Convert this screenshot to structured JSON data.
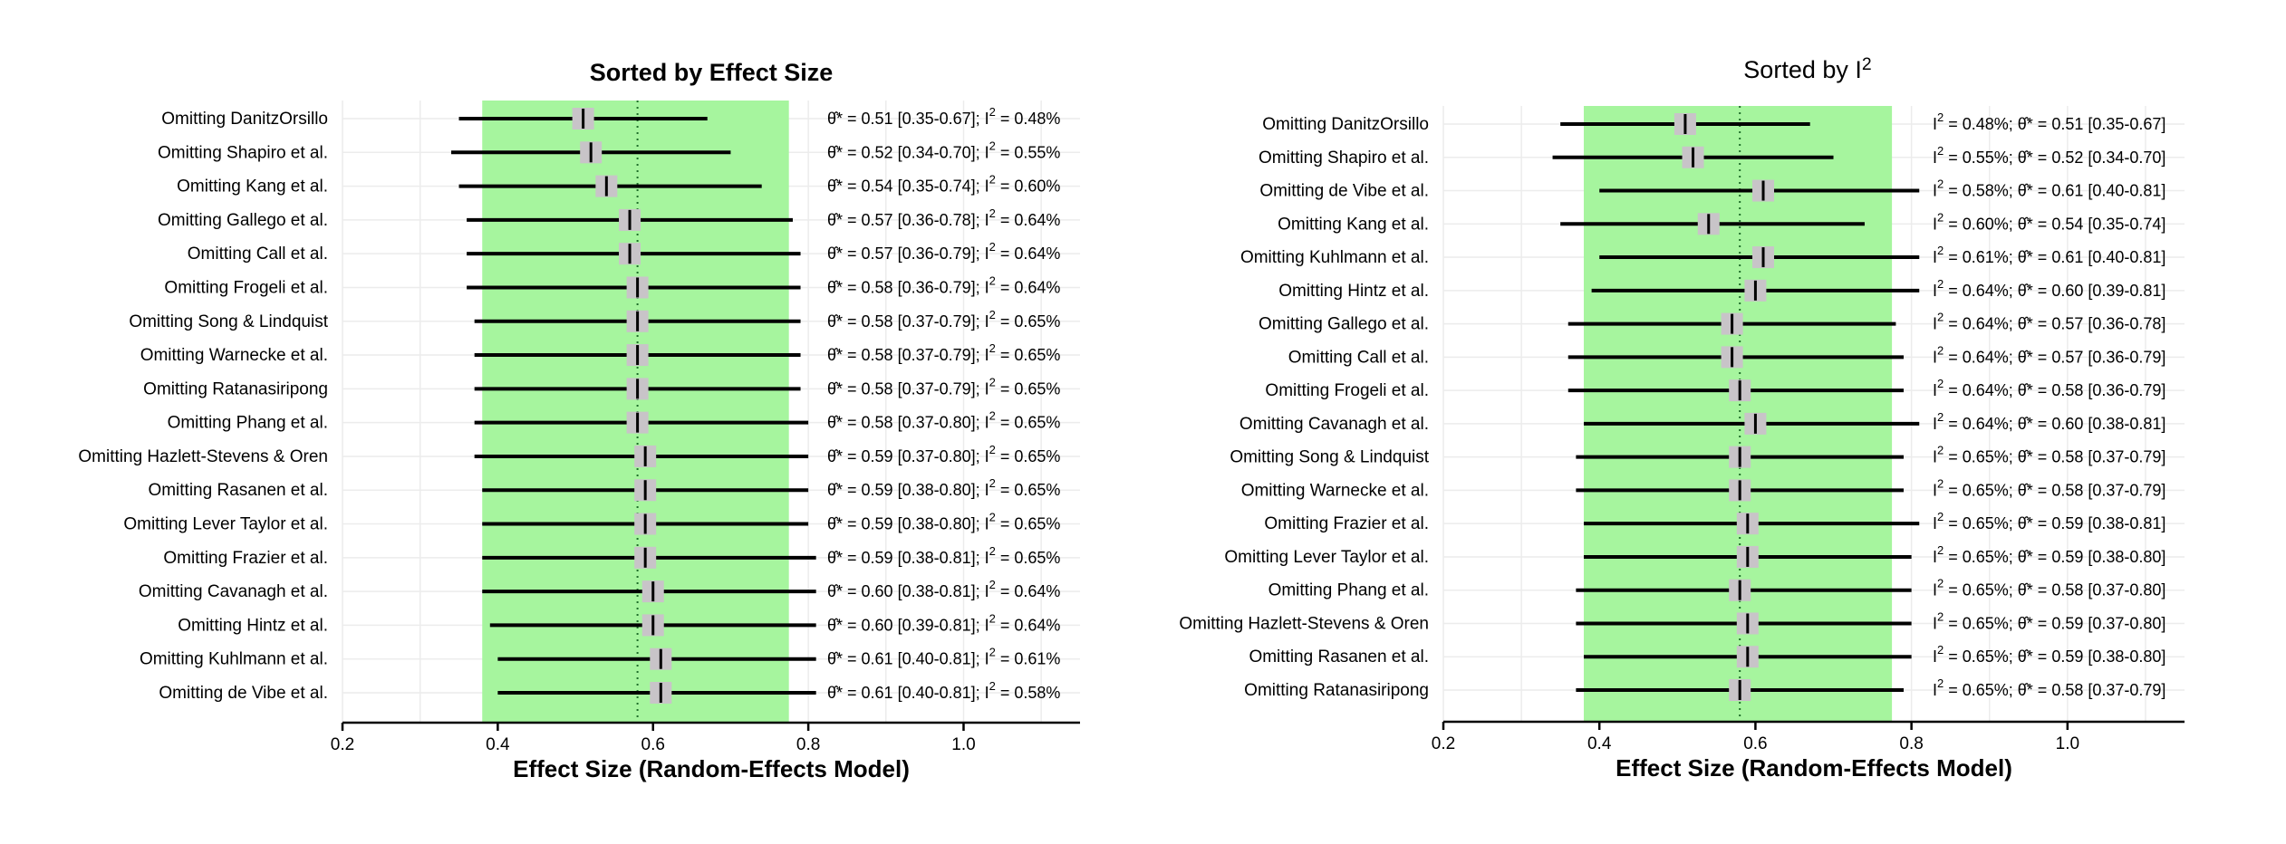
{
  "chart_data": [
    {
      "type": "forest",
      "title": "Sorted by Effect Size",
      "xlabel": "Effect Size (Random-Effects Model)",
      "xlim": [
        0.2,
        1.15
      ],
      "xticks": [
        0.2,
        0.4,
        0.6,
        0.8,
        1.0
      ],
      "xtick_labels": [
        "0.2",
        "0.4",
        "0.6",
        "0.8",
        "1.0"
      ],
      "pooled_estimate": 0.58,
      "pooled_ci": [
        0.38,
        0.775
      ],
      "grid": true,
      "rows": [
        {
          "label": "Omitting DanitzOrsillo",
          "est": 0.51,
          "lo": 0.35,
          "hi": 0.67,
          "annotation": "θ̂* = 0.51 [0.35-0.67]; I² = 0.48%"
        },
        {
          "label": "Omitting Shapiro et al.",
          "est": 0.52,
          "lo": 0.34,
          "hi": 0.7,
          "annotation": "θ̂* = 0.52 [0.34-0.70]; I² = 0.55%"
        },
        {
          "label": "Omitting Kang et al.",
          "est": 0.54,
          "lo": 0.35,
          "hi": 0.74,
          "annotation": "θ̂* = 0.54 [0.35-0.74]; I² = 0.60%"
        },
        {
          "label": "Omitting Gallego et al.",
          "est": 0.57,
          "lo": 0.36,
          "hi": 0.78,
          "annotation": "θ̂* = 0.57 [0.36-0.78]; I² = 0.64%"
        },
        {
          "label": "Omitting Call et al.",
          "est": 0.57,
          "lo": 0.36,
          "hi": 0.79,
          "annotation": "θ̂* = 0.57 [0.36-0.79]; I² = 0.64%"
        },
        {
          "label": "Omitting Frogeli et al.",
          "est": 0.58,
          "lo": 0.36,
          "hi": 0.79,
          "annotation": "θ̂* = 0.58 [0.36-0.79]; I² = 0.64%"
        },
        {
          "label": "Omitting Song & Lindquist",
          "est": 0.58,
          "lo": 0.37,
          "hi": 0.79,
          "annotation": "θ̂* = 0.58 [0.37-0.79]; I² = 0.65%"
        },
        {
          "label": "Omitting Warnecke et al.",
          "est": 0.58,
          "lo": 0.37,
          "hi": 0.79,
          "annotation": "θ̂* = 0.58 [0.37-0.79]; I² = 0.65%"
        },
        {
          "label": "Omitting Ratanasiripong",
          "est": 0.58,
          "lo": 0.37,
          "hi": 0.79,
          "annotation": "θ̂* = 0.58 [0.37-0.79]; I² = 0.65%"
        },
        {
          "label": "Omitting Phang et al.",
          "est": 0.58,
          "lo": 0.37,
          "hi": 0.8,
          "annotation": "θ̂* = 0.58 [0.37-0.80]; I² = 0.65%"
        },
        {
          "label": "Omitting Hazlett-Stevens & Oren",
          "est": 0.59,
          "lo": 0.37,
          "hi": 0.8,
          "annotation": "θ̂* = 0.59 [0.37-0.80]; I² = 0.65%"
        },
        {
          "label": "Omitting Rasanen et al.",
          "est": 0.59,
          "lo": 0.38,
          "hi": 0.8,
          "annotation": "θ̂* = 0.59 [0.38-0.80]; I² = 0.65%"
        },
        {
          "label": "Omitting Lever Taylor et al.",
          "est": 0.59,
          "lo": 0.38,
          "hi": 0.8,
          "annotation": "θ̂* = 0.59 [0.38-0.80]; I² = 0.65%"
        },
        {
          "label": "Omitting Frazier et al.",
          "est": 0.59,
          "lo": 0.38,
          "hi": 0.81,
          "annotation": "θ̂* = 0.59 [0.38-0.81]; I² = 0.65%"
        },
        {
          "label": "Omitting Cavanagh et al.",
          "est": 0.6,
          "lo": 0.38,
          "hi": 0.81,
          "annotation": "θ̂* = 0.60 [0.38-0.81]; I² = 0.64%"
        },
        {
          "label": "Omitting Hintz et al.",
          "est": 0.6,
          "lo": 0.39,
          "hi": 0.81,
          "annotation": "θ̂* = 0.60 [0.39-0.81]; I² = 0.64%"
        },
        {
          "label": "Omitting Kuhlmann et al.",
          "est": 0.61,
          "lo": 0.4,
          "hi": 0.81,
          "annotation": "θ̂* = 0.61 [0.40-0.81]; I² = 0.61%"
        },
        {
          "label": "Omitting de Vibe et al.",
          "est": 0.61,
          "lo": 0.4,
          "hi": 0.81,
          "annotation": "θ̂* = 0.61 [0.40-0.81]; I² = 0.58%"
        }
      ]
    },
    {
      "type": "forest",
      "title": "Sorted by I²",
      "xlabel": "Effect Size (Random-Effects Model)",
      "xlim": [
        0.2,
        1.15
      ],
      "xticks": [
        0.2,
        0.4,
        0.6,
        0.8,
        1.0
      ],
      "xtick_labels": [
        "0.2",
        "0.4",
        "0.6",
        "0.8",
        "1.0"
      ],
      "pooled_estimate": 0.58,
      "pooled_ci": [
        0.38,
        0.775
      ],
      "grid": true,
      "rows": [
        {
          "label": "Omitting DanitzOrsillo",
          "est": 0.51,
          "lo": 0.35,
          "hi": 0.67,
          "annotation": "I² = 0.48%; θ̂* = 0.51 [0.35-0.67]"
        },
        {
          "label": "Omitting Shapiro et al.",
          "est": 0.52,
          "lo": 0.34,
          "hi": 0.7,
          "annotation": "I² = 0.55%; θ̂* = 0.52 [0.34-0.70]"
        },
        {
          "label": "Omitting de Vibe et al.",
          "est": 0.61,
          "lo": 0.4,
          "hi": 0.81,
          "annotation": "I² = 0.58%; θ̂* = 0.61 [0.40-0.81]"
        },
        {
          "label": "Omitting Kang et al.",
          "est": 0.54,
          "lo": 0.35,
          "hi": 0.74,
          "annotation": "I² = 0.60%; θ̂* = 0.54 [0.35-0.74]"
        },
        {
          "label": "Omitting Kuhlmann et al.",
          "est": 0.61,
          "lo": 0.4,
          "hi": 0.81,
          "annotation": "I² = 0.61%; θ̂* = 0.61 [0.40-0.81]"
        },
        {
          "label": "Omitting Hintz et al.",
          "est": 0.6,
          "lo": 0.39,
          "hi": 0.81,
          "annotation": "I² = 0.64%; θ̂* = 0.60 [0.39-0.81]"
        },
        {
          "label": "Omitting Gallego et al.",
          "est": 0.57,
          "lo": 0.36,
          "hi": 0.78,
          "annotation": "I² = 0.64%; θ̂* = 0.57 [0.36-0.78]"
        },
        {
          "label": "Omitting Call et al.",
          "est": 0.57,
          "lo": 0.36,
          "hi": 0.79,
          "annotation": "I² = 0.64%; θ̂* = 0.57 [0.36-0.79]"
        },
        {
          "label": "Omitting Frogeli et al.",
          "est": 0.58,
          "lo": 0.36,
          "hi": 0.79,
          "annotation": "I² = 0.64%; θ̂* = 0.58 [0.36-0.79]"
        },
        {
          "label": "Omitting Cavanagh et al.",
          "est": 0.6,
          "lo": 0.38,
          "hi": 0.81,
          "annotation": "I² = 0.64%; θ̂* = 0.60 [0.38-0.81]"
        },
        {
          "label": "Omitting Song & Lindquist",
          "est": 0.58,
          "lo": 0.37,
          "hi": 0.79,
          "annotation": "I² = 0.65%; θ̂* = 0.58 [0.37-0.79]"
        },
        {
          "label": "Omitting Warnecke et al.",
          "est": 0.58,
          "lo": 0.37,
          "hi": 0.79,
          "annotation": "I² = 0.65%; θ̂* = 0.58 [0.37-0.79]"
        },
        {
          "label": "Omitting Frazier et al.",
          "est": 0.59,
          "lo": 0.38,
          "hi": 0.81,
          "annotation": "I² = 0.65%; θ̂* = 0.59 [0.38-0.81]"
        },
        {
          "label": "Omitting Lever Taylor et al.",
          "est": 0.59,
          "lo": 0.38,
          "hi": 0.8,
          "annotation": "I² = 0.65%; θ̂* = 0.59 [0.38-0.80]"
        },
        {
          "label": "Omitting Phang et al.",
          "est": 0.58,
          "lo": 0.37,
          "hi": 0.8,
          "annotation": "I² = 0.65%; θ̂* = 0.58 [0.37-0.80]"
        },
        {
          "label": "Omitting Hazlett-Stevens & Oren",
          "est": 0.59,
          "lo": 0.37,
          "hi": 0.8,
          "annotation": "I² = 0.65%; θ̂* = 0.59 [0.37-0.80]"
        },
        {
          "label": "Omitting Rasanen et al.",
          "est": 0.59,
          "lo": 0.38,
          "hi": 0.8,
          "annotation": "I² = 0.65%; θ̂* = 0.59 [0.38-0.80]"
        },
        {
          "label": "Omitting Ratanasiripong",
          "est": 0.58,
          "lo": 0.37,
          "hi": 0.79,
          "annotation": "I² = 0.65%; θ̂* = 0.58 [0.37-0.79]"
        }
      ]
    }
  ],
  "colors": {
    "ci_band": "#a6f59e",
    "marker_box": "#c8c4c8",
    "line": "#000000",
    "grid": "#ececec",
    "pooled_line": "#1f6e2a"
  }
}
